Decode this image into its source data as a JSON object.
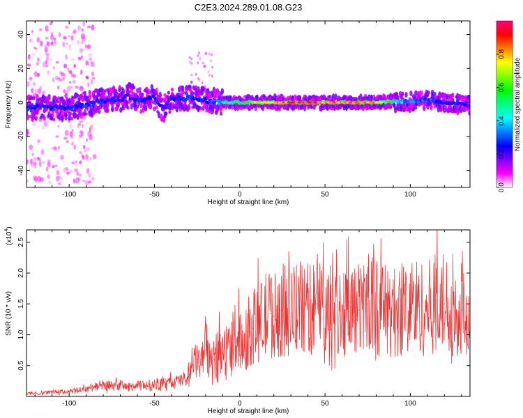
{
  "page_title": "C2E3.2024.289.01.08.G23",
  "chart_data": [
    {
      "type": "heatmap",
      "title": "C2E3.2024.289.01.08.G23",
      "xlabel": "Height of straight line (km)",
      "ylabel": "Frequency (Hz)",
      "xlim": [
        -125,
        135
      ],
      "ylim": [
        -50,
        48
      ],
      "x_ticks": [
        -100,
        -50,
        0,
        50,
        100
      ],
      "x_tick_labels": [
        "-100",
        "-50",
        "0",
        "50",
        "100"
      ],
      "y_ticks": [
        -40,
        -20,
        0,
        20,
        40
      ],
      "y_tick_labels": [
        "-40",
        "-20",
        "0",
        "20",
        "40"
      ],
      "grid": false,
      "colorbar": {
        "label": "Normalized spectral amplitude",
        "range": [
          0,
          1
        ],
        "ticks": [
          0.0,
          0.2,
          0.4,
          0.6,
          0.8
        ],
        "tick_labels": [
          "0.0",
          "0.2",
          "0.4",
          "0.6",
          "0.8"
        ],
        "colormap": [
          "#ffffff",
          "#ff00ff",
          "#8000ff",
          "#0000ff",
          "#0080ff",
          "#00ffff",
          "#00ff80",
          "#00ff00",
          "#80ff00",
          "#ffff00",
          "#ff8000",
          "#ff0000",
          "#ff0080"
        ]
      },
      "ridge": [
        {
          "x": -125,
          "f": -3.5,
          "a": 0.35
        },
        {
          "x": -115,
          "f": -2.5,
          "a": 0.3
        },
        {
          "x": -110,
          "f": -3,
          "a": 0.35
        },
        {
          "x": -105,
          "f": -3,
          "a": 0.3
        },
        {
          "x": -100,
          "f": -3,
          "a": 0.32
        },
        {
          "x": -90,
          "f": -1,
          "a": 0.35
        },
        {
          "x": -80,
          "f": 1,
          "a": 0.32
        },
        {
          "x": -70,
          "f": 2,
          "a": 0.35
        },
        {
          "x": -65,
          "f": 4,
          "a": 0.3
        },
        {
          "x": -60,
          "f": 1,
          "a": 0.35
        },
        {
          "x": -50,
          "f": 3,
          "a": 0.32
        },
        {
          "x": -45,
          "f": -4,
          "a": 0.3
        },
        {
          "x": -40,
          "f": 2,
          "a": 0.3
        },
        {
          "x": -30,
          "f": 3,
          "a": 0.35
        },
        {
          "x": -20,
          "f": 1,
          "a": 0.35
        },
        {
          "x": -10,
          "f": 0,
          "a": 0.5
        },
        {
          "x": 0,
          "f": 0,
          "a": 0.6
        },
        {
          "x": 10,
          "f": 0,
          "a": 0.75
        },
        {
          "x": 20,
          "f": 0,
          "a": 0.85
        },
        {
          "x": 30,
          "f": 0,
          "a": 0.95
        },
        {
          "x": 40,
          "f": 0,
          "a": 0.95
        },
        {
          "x": 50,
          "f": 0,
          "a": 0.9
        },
        {
          "x": 60,
          "f": 0,
          "a": 0.88
        },
        {
          "x": 70,
          "f": 0,
          "a": 0.92
        },
        {
          "x": 80,
          "f": 0,
          "a": 0.85
        },
        {
          "x": 90,
          "f": 0.5,
          "a": 0.6
        },
        {
          "x": 100,
          "f": 0.5,
          "a": 0.45
        },
        {
          "x": 110,
          "f": 1.5,
          "a": 0.4
        },
        {
          "x": 120,
          "f": 0,
          "a": 0.35
        },
        {
          "x": 130,
          "f": -1,
          "a": 0.35
        },
        {
          "x": 135,
          "f": -2,
          "a": 0.3
        }
      ]
    },
    {
      "type": "line",
      "xlabel": "Height of straight line (km)",
      "ylabel": "SNR (10 * v/v)",
      "y_multiplier_label": "(x10",
      "y_multiplier_exponent": "4",
      "y_multiplier_close": ")",
      "xlim": [
        -125,
        135
      ],
      "ylim": [
        0,
        2.7
      ],
      "x_ticks": [
        -100,
        -50,
        0,
        50,
        100
      ],
      "x_tick_labels": [
        "-100",
        "-50",
        "0",
        "50",
        "100"
      ],
      "y_ticks": [
        0.5,
        1.0,
        1.5,
        2.0,
        2.5
      ],
      "y_tick_labels": [
        "0.5",
        "1.0",
        "1.5",
        "2.0",
        "2.5"
      ],
      "grid": false,
      "series": [
        {
          "color": "#ee3333",
          "x": [
            -125,
            -120,
            -110,
            -100,
            -95,
            -90,
            -85,
            -80,
            -75,
            -70,
            -65,
            -60,
            -55,
            -50,
            -45,
            -40,
            -35,
            -30,
            -27,
            -25,
            -22,
            -20,
            -17,
            -15,
            -12,
            -10,
            -7,
            -5,
            -3,
            0,
            3,
            5,
            8,
            10,
            12,
            15,
            18,
            20,
            25,
            30,
            35,
            40,
            45,
            50,
            55,
            60,
            65,
            70,
            75,
            80,
            85,
            90,
            95,
            100,
            105,
            110,
            115,
            120,
            125,
            130,
            135
          ],
          "y": [
            0.05,
            0.05,
            0.07,
            0.08,
            0.1,
            0.12,
            0.17,
            0.18,
            0.17,
            0.18,
            0.15,
            0.17,
            0.18,
            0.2,
            0.2,
            0.22,
            0.25,
            0.32,
            0.5,
            0.6,
            0.55,
            0.75,
            0.5,
            0.6,
            0.75,
            0.7,
            0.8,
            0.85,
            1.0,
            0.95,
            0.8,
            1.05,
            1.1,
            1.25,
            1.2,
            1.3,
            1.35,
            1.3,
            1.4,
            1.35,
            1.45,
            1.4,
            1.5,
            1.45,
            1.35,
            1.4,
            1.45,
            1.4,
            1.5,
            1.45,
            1.4,
            1.35,
            1.4,
            1.5,
            1.45,
            1.4,
            1.55,
            1.5,
            1.45,
            1.4,
            1.35
          ]
        }
      ]
    }
  ]
}
